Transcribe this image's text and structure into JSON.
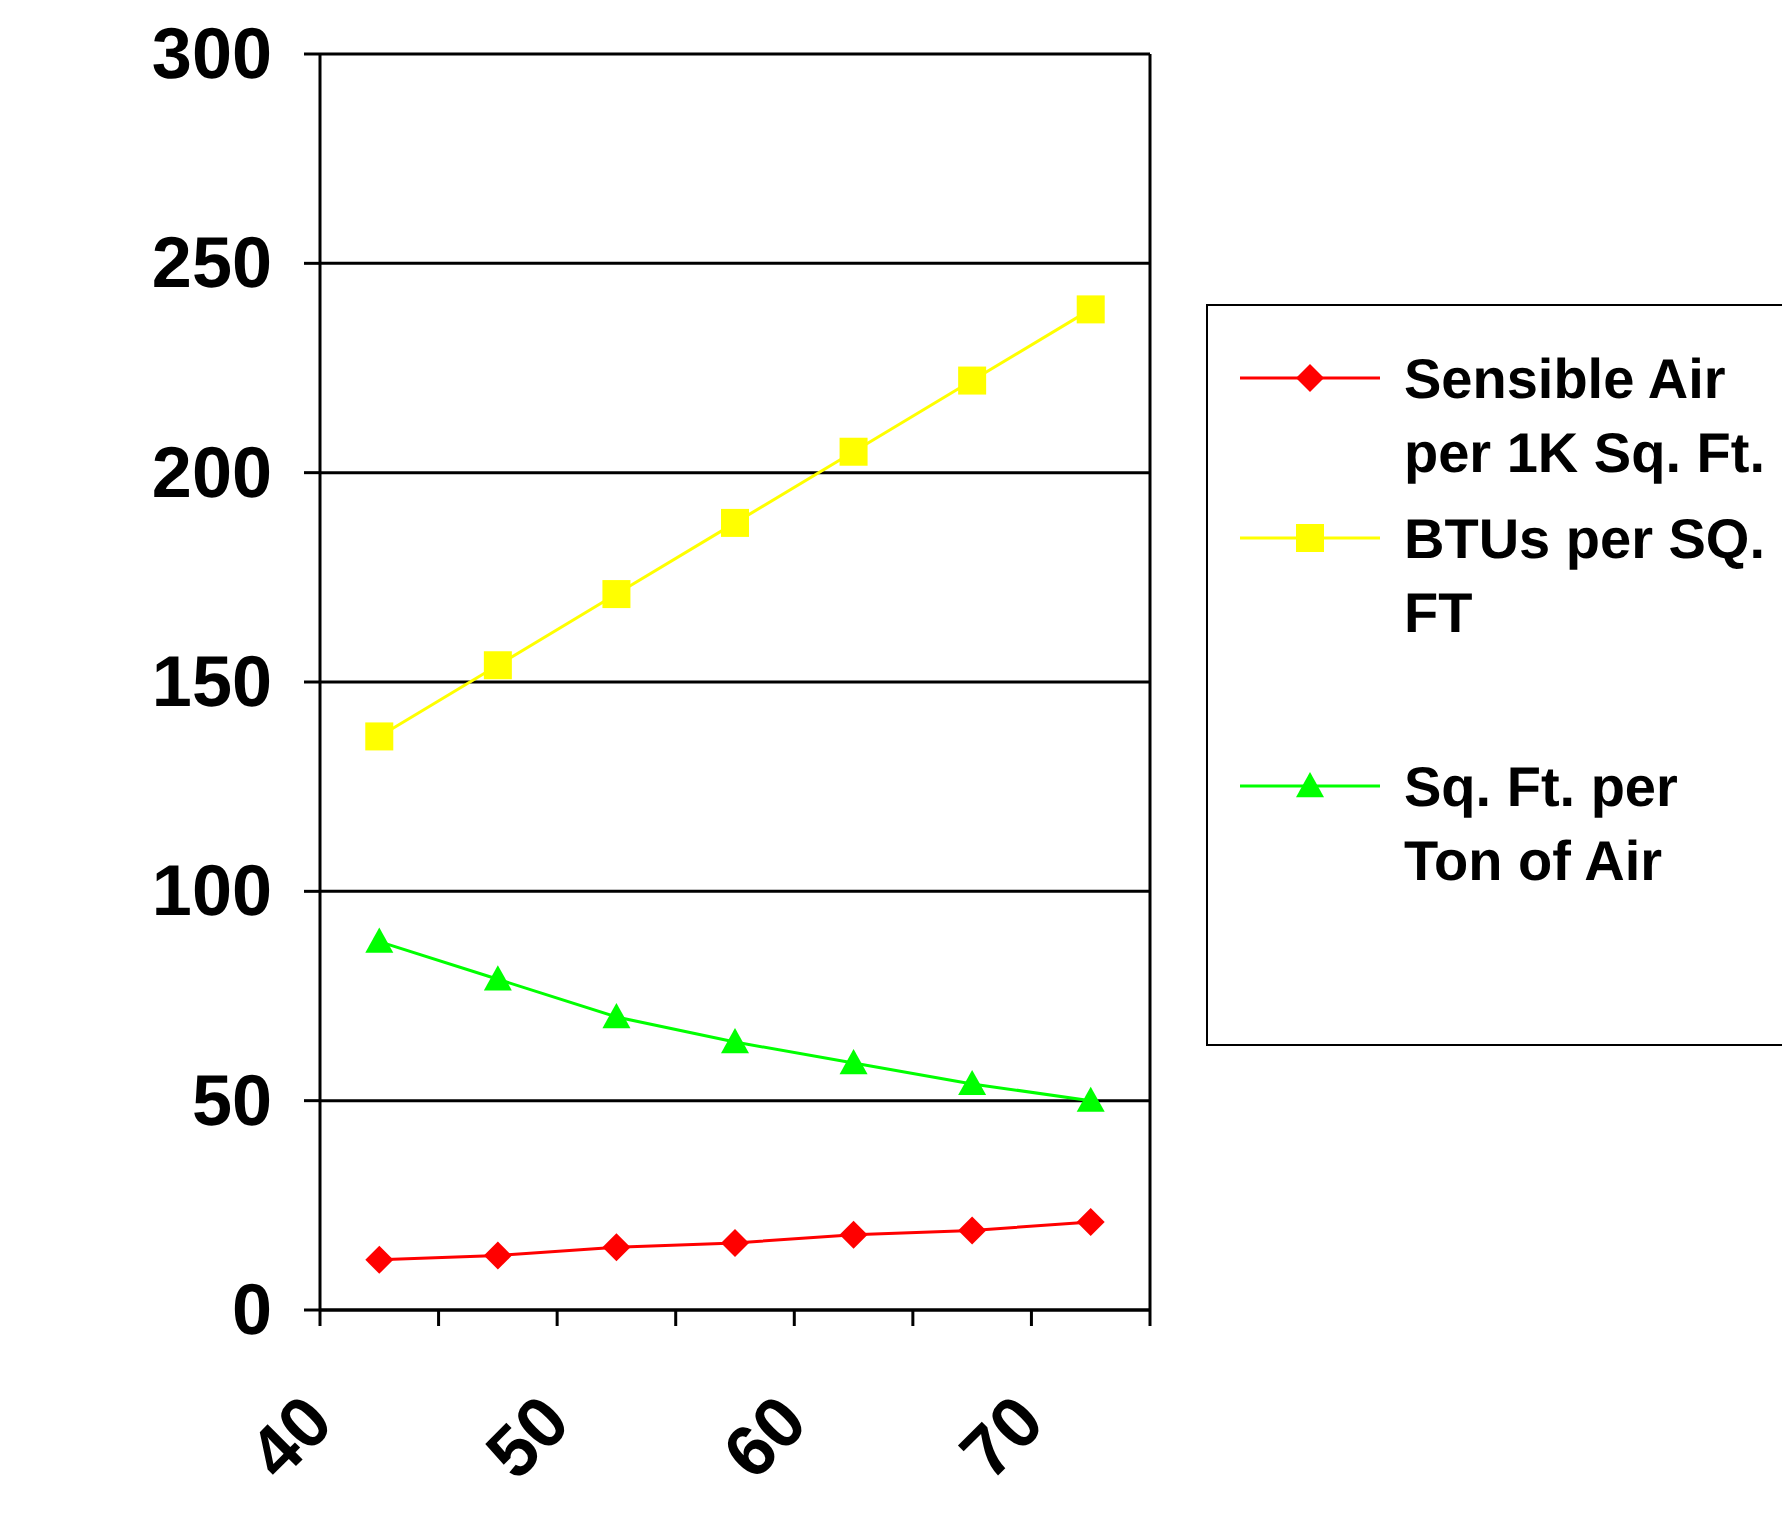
{
  "chart_data": {
    "type": "line",
    "x": [
      42.5,
      47.5,
      52.5,
      57.5,
      62.5,
      67.5,
      72.5
    ],
    "series": [
      {
        "name": "Sensible Air per 1K Sq. Ft.",
        "color": "#ff0000",
        "marker": "diamond",
        "values": [
          12,
          13,
          15,
          16,
          18,
          19,
          21
        ]
      },
      {
        "name": "BTUs per SQ. FT",
        "color": "#ffff00",
        "marker": "square",
        "values": [
          137,
          154,
          171,
          188,
          205,
          222,
          239
        ]
      },
      {
        "name": "Sq. Ft. per Ton of Air",
        "color": "#00ff00",
        "marker": "triangle",
        "values": [
          88,
          79,
          70,
          64,
          59,
          54,
          50
        ]
      }
    ],
    "xlim": [
      40,
      75
    ],
    "xticks": [
      40,
      {
        "value": 45,
        "label": null
      },
      50,
      {
        "value": 55,
        "label": null
      },
      60,
      {
        "value": 65,
        "label": null
      },
      70,
      {
        "value": 75,
        "label": null
      }
    ],
    "ylim": [
      0,
      300
    ],
    "yticks": [
      0,
      50,
      100,
      150,
      200,
      250,
      300
    ],
    "grid": "y",
    "legend": "right"
  }
}
